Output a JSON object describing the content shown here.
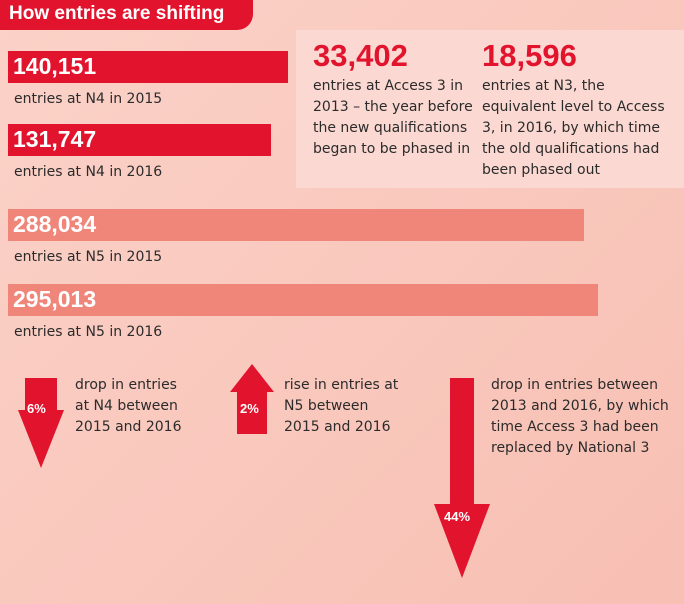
{
  "title": "How entries are shifting",
  "colors": {
    "accent": "#e2132d",
    "bar_light": "#f0857a",
    "panel": "#fbd9d2",
    "background": "#fbd2c8"
  },
  "chart_data": {
    "type": "bar",
    "title": "How entries are shifting",
    "bars": [
      {
        "value": 140151,
        "label": "140,151",
        "caption": "entries at N4 in 2015",
        "color": "#e2132d"
      },
      {
        "value": 131747,
        "label": "131,747",
        "caption": "entries at N4 in 2016",
        "color": "#e2132d"
      },
      {
        "value": 288034,
        "label": "288,034",
        "caption": "entries at N5 in 2015",
        "color": "#f0857a"
      },
      {
        "value": 295013,
        "label": "295,013",
        "caption": "entries at N5 in 2016",
        "color": "#f0857a"
      }
    ],
    "stats": [
      {
        "value": 33402,
        "label": "33,402",
        "caption": "entries at Access 3 in 2013 – the year before the new qualifications began to be phased in"
      },
      {
        "value": 18596,
        "label": "18,596",
        "caption": "entries at N3, the equivalent level to Access 3, in 2016, by which time the old qualifications had been phased out"
      }
    ],
    "changes": [
      {
        "direction": "down",
        "percent": 6,
        "label": "6%",
        "caption": "drop in entries at N4 between 2015 and 2016"
      },
      {
        "direction": "up",
        "percent": 2,
        "label": "2%",
        "caption": "rise in entries at N5 between 2015 and 2016"
      },
      {
        "direction": "down",
        "percent": 44,
        "label": "44%",
        "caption": "drop in entries between 2013 and 2016, by which time Access 3 had been replaced by National 3"
      }
    ]
  }
}
